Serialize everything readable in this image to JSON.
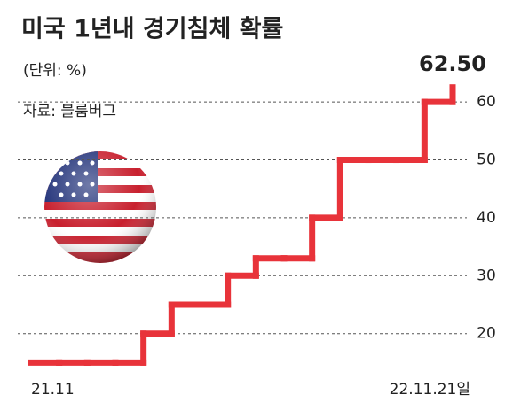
{
  "chart_data": {
    "type": "step-line",
    "title": "미국 1년내 경기침체 확률",
    "subtitle": "(단위: %)",
    "source": "자료: 블룸버그",
    "categories": [
      "21.11",
      null,
      null,
      null,
      null,
      null,
      null,
      null,
      null,
      null,
      null,
      null,
      null,
      null,
      null,
      "22.11.21일"
    ],
    "series": [
      {
        "name": "경기침체 확률",
        "color": "#e8333a",
        "values": [
          15,
          15,
          15,
          15,
          20,
          25,
          25,
          30,
          33,
          33,
          40,
          50,
          50,
          50,
          60,
          62.5
        ],
        "value_labels": [
          null,
          null,
          null,
          null,
          null,
          null,
          null,
          null,
          null,
          null,
          null,
          null,
          null,
          null,
          null,
          "62.50"
        ]
      }
    ],
    "ylim": [
      12,
      64
    ],
    "yticks": [
      20,
      30,
      40,
      50,
      60
    ],
    "grid": true,
    "y_axis_side": "right"
  }
}
